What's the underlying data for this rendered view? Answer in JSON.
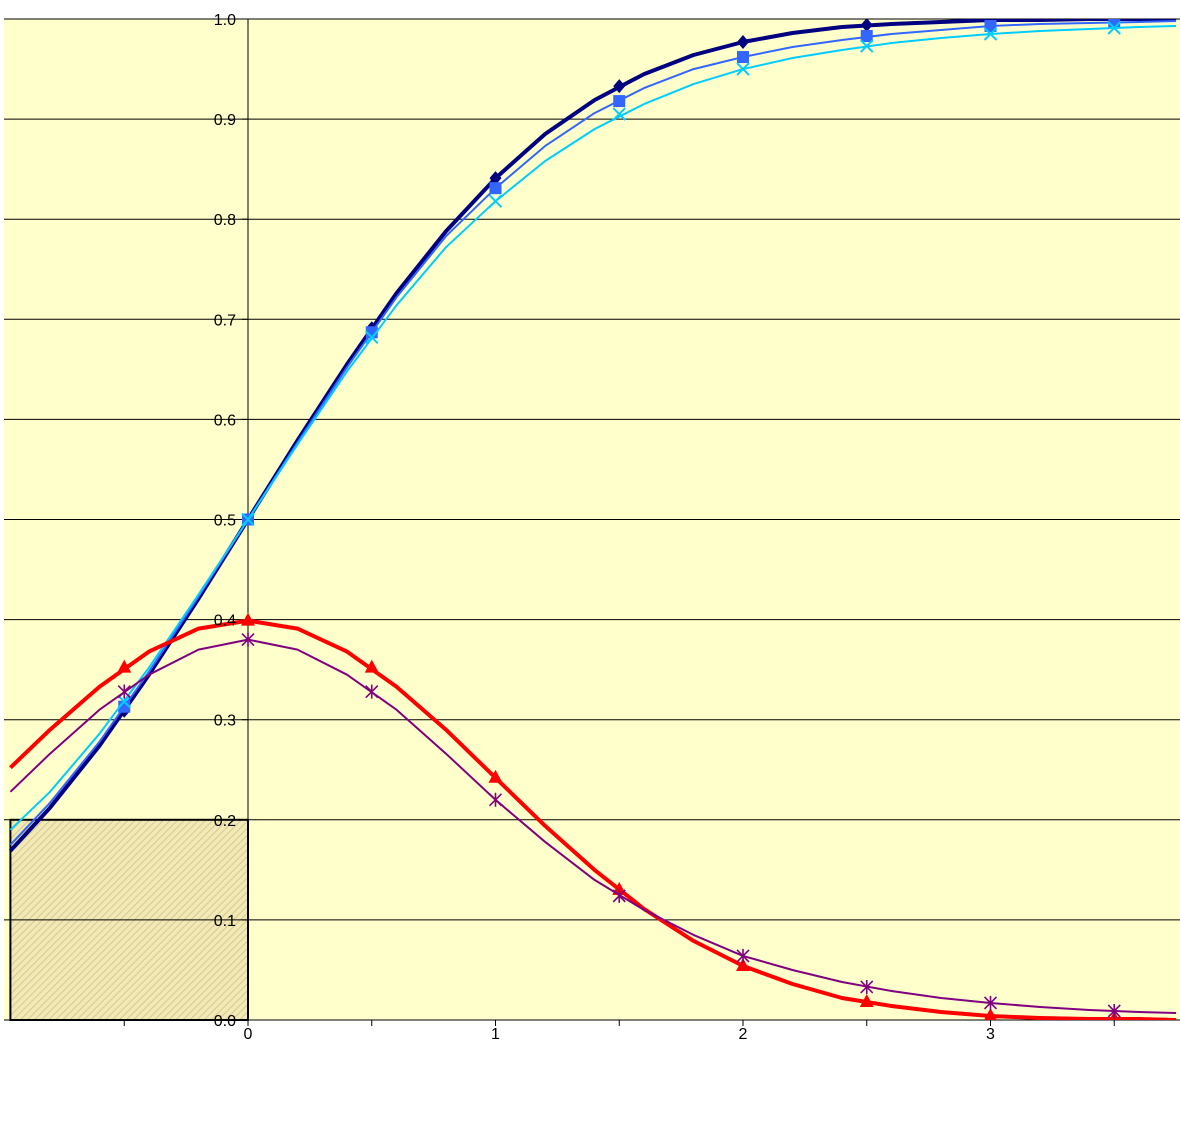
{
  "chart_data": {
    "type": "line",
    "title": "",
    "xlabel": "",
    "ylabel": "",
    "xlim": [
      -0.96,
      3.75
    ],
    "ylim": [
      0,
      1.0
    ],
    "grid": "horizontal",
    "legend": "none",
    "plot_background": "#FFFFCC",
    "x_ticks": [
      0,
      1,
      2,
      3
    ],
    "x_tick_labels": [
      "0",
      "1",
      "2",
      "3"
    ],
    "x_minor_ticks": [
      -0.5,
      0.5,
      1.5,
      2.5,
      3.5
    ],
    "y_ticks": [
      0,
      0.1,
      0.2,
      0.3,
      0.4,
      0.5,
      0.6,
      0.7,
      0.8,
      0.9,
      1.0
    ],
    "y_tick_labels": [
      "0.0",
      "0.1",
      "0.2",
      "0.3",
      "0.4",
      "0.5",
      "0.6",
      "0.7",
      "0.8",
      "0.9",
      "1.0"
    ],
    "shaded_region": {
      "x": [
        -0.96,
        0
      ],
      "y": [
        0,
        0.2
      ],
      "pattern": "hatch"
    },
    "series": [
      {
        "color": "#000080",
        "marker": "diamond",
        "width": 4,
        "x": [
          -0.5,
          0,
          0.5,
          1,
          1.5,
          2,
          2.5,
          3,
          3.5
        ],
        "y": [
          0.309,
          0.5,
          0.691,
          0.841,
          0.933,
          0.977,
          0.994,
          0.999,
          1.0
        ],
        "curve_x": [
          -0.96,
          -0.8,
          -0.6,
          -0.4,
          -0.2,
          0,
          0.2,
          0.4,
          0.6,
          0.8,
          1.0,
          1.2,
          1.4,
          1.6,
          1.8,
          2.0,
          2.2,
          2.4,
          2.6,
          2.8,
          3.0,
          3.2,
          3.4,
          3.6,
          3.75
        ],
        "curve_y": [
          0.169,
          0.212,
          0.274,
          0.345,
          0.421,
          0.5,
          0.579,
          0.655,
          0.726,
          0.788,
          0.841,
          0.885,
          0.919,
          0.945,
          0.964,
          0.977,
          0.986,
          0.992,
          0.995,
          0.997,
          0.999,
          0.999,
          1.0,
          1.0,
          1.0
        ]
      },
      {
        "color": "#3366FF",
        "marker": "square",
        "width": 2,
        "x": [
          -0.5,
          0,
          0.5,
          1,
          1.5,
          2,
          2.5,
          3,
          3.5
        ],
        "y": [
          0.313,
          0.5,
          0.687,
          0.831,
          0.918,
          0.962,
          0.983,
          0.993,
          0.997
        ],
        "curve_x": [
          -0.96,
          -0.8,
          -0.6,
          -0.4,
          -0.2,
          0,
          0.2,
          0.4,
          0.6,
          0.8,
          1.0,
          1.2,
          1.4,
          1.6,
          1.8,
          2.0,
          2.2,
          2.4,
          2.6,
          2.8,
          3.0,
          3.2,
          3.4,
          3.6,
          3.75
        ],
        "curve_y": [
          0.175,
          0.217,
          0.278,
          0.348,
          0.423,
          0.5,
          0.577,
          0.652,
          0.722,
          0.783,
          0.831,
          0.873,
          0.906,
          0.931,
          0.95,
          0.962,
          0.972,
          0.979,
          0.985,
          0.989,
          0.993,
          0.995,
          0.996,
          0.997,
          0.998
        ]
      },
      {
        "color": "#00CCFF",
        "marker": "x",
        "width": 2,
        "x": [
          -0.5,
          0,
          0.5,
          1,
          1.5,
          2,
          2.5,
          3,
          3.5
        ],
        "y": [
          0.318,
          0.5,
          0.682,
          0.818,
          0.905,
          0.95,
          0.973,
          0.985,
          0.991
        ],
        "curve_x": [
          -0.96,
          -0.8,
          -0.6,
          -0.4,
          -0.2,
          0,
          0.2,
          0.4,
          0.6,
          0.8,
          1.0,
          1.2,
          1.4,
          1.6,
          1.8,
          2.0,
          2.2,
          2.4,
          2.6,
          2.8,
          3.0,
          3.2,
          3.4,
          3.6,
          3.75
        ],
        "curve_y": [
          0.19,
          0.228,
          0.286,
          0.352,
          0.425,
          0.5,
          0.575,
          0.648,
          0.714,
          0.772,
          0.818,
          0.858,
          0.89,
          0.915,
          0.935,
          0.95,
          0.961,
          0.969,
          0.976,
          0.981,
          0.985,
          0.988,
          0.99,
          0.992,
          0.993
        ]
      },
      {
        "color": "#FF0000",
        "marker": "triangle",
        "width": 4,
        "x": [
          -0.5,
          0,
          0.5,
          1,
          1.5,
          2,
          2.5,
          3,
          3.5
        ],
        "y": [
          0.352,
          0.399,
          0.352,
          0.242,
          0.13,
          0.054,
          0.018,
          0.004,
          0.001
        ],
        "curve_x": [
          -0.96,
          -0.8,
          -0.6,
          -0.4,
          -0.2,
          0,
          0.2,
          0.4,
          0.6,
          0.8,
          1.0,
          1.2,
          1.4,
          1.6,
          1.8,
          2.0,
          2.2,
          2.4,
          2.6,
          2.8,
          3.0,
          3.2,
          3.4,
          3.6,
          3.75
        ],
        "curve_y": [
          0.252,
          0.29,
          0.333,
          0.368,
          0.391,
          0.399,
          0.391,
          0.368,
          0.333,
          0.29,
          0.242,
          0.194,
          0.15,
          0.111,
          0.079,
          0.054,
          0.036,
          0.022,
          0.014,
          0.008,
          0.004,
          0.002,
          0.001,
          0.001,
          0.0
        ]
      },
      {
        "color": "#800080",
        "marker": "asterisk",
        "width": 2,
        "x": [
          -0.5,
          0,
          0.5,
          1,
          1.5,
          2,
          2.5,
          3,
          3.5
        ],
        "y": [
          0.328,
          0.38,
          0.328,
          0.22,
          0.124,
          0.064,
          0.033,
          0.017,
          0.009
        ],
        "curve_x": [
          -0.96,
          -0.8,
          -0.6,
          -0.4,
          -0.2,
          0,
          0.2,
          0.4,
          0.6,
          0.8,
          1.0,
          1.2,
          1.4,
          1.6,
          1.8,
          2.0,
          2.2,
          2.4,
          2.6,
          2.8,
          3.0,
          3.2,
          3.4,
          3.6,
          3.75
        ],
        "curve_y": [
          0.228,
          0.266,
          0.31,
          0.345,
          0.37,
          0.38,
          0.37,
          0.345,
          0.31,
          0.266,
          0.22,
          0.178,
          0.14,
          0.11,
          0.085,
          0.064,
          0.05,
          0.038,
          0.029,
          0.022,
          0.017,
          0.013,
          0.01,
          0.008,
          0.007
        ]
      }
    ]
  }
}
